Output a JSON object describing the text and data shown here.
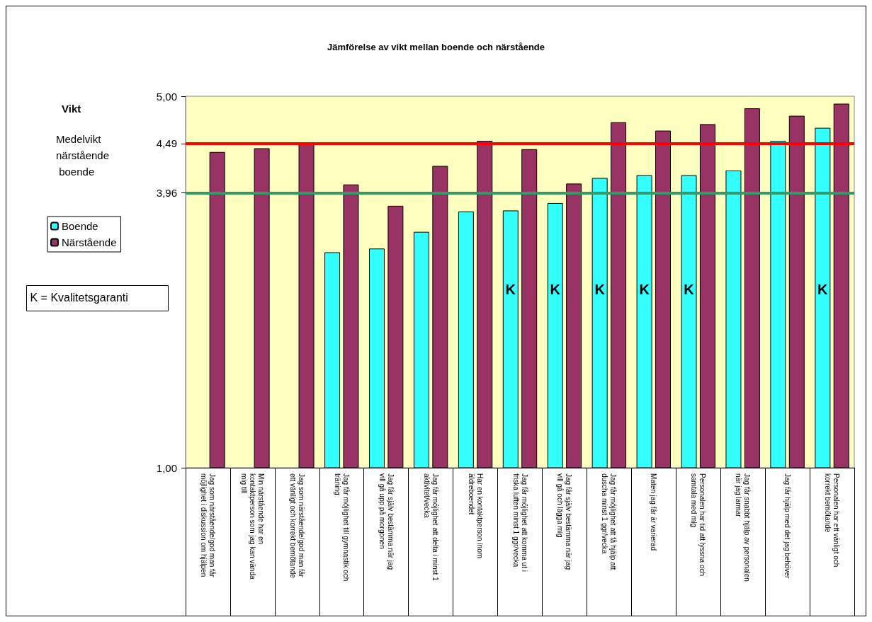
{
  "chart_data": {
    "type": "bar",
    "title": "Jämförelse av vikt mellan boende och närstående",
    "categories": [
      "Jag som närstående/god man får möjlighet i diskussion om hjälpen",
      "Min närstående har en kontaktperson som jag kan vända mig till",
      "Jag som närstående/god man får ett vänligt och korrekt bemötande",
      "Jag får möjlighet till gymnastik och träning",
      "Jag får själv bestämma när jag vill gå upp på morgonen",
      "Jag får möjlighet att delta i minst 1 aktivitet/vecka",
      "Har en kontaktperson inom äldreboendet",
      "Jag får möjlighet att komma ut i friska luften minst 1 ggr/vecka",
      "Jag får själv bestämma när jag vill gå och lägga mig",
      "Jag får möjlighet att få hjälp att duscha minst 1 ggr/vecka",
      "Maten jag får är varierad",
      "Personalen har tid att lyssna och samtala med mig",
      "Jag får snabbt hjälp av personalen när jag larmar",
      "Jag får hjälp med det jag behöver",
      "Personalen har ett vänligt och korrekt bemötande"
    ],
    "series": [
      {
        "name": "Boende",
        "color": "#33ffff",
        "values": [
          null,
          null,
          null,
          3.32,
          3.36,
          3.54,
          3.76,
          3.77,
          3.85,
          4.12,
          4.15,
          4.15,
          4.2,
          4.52,
          4.66
        ]
      },
      {
        "name": "Närstående",
        "color": "#993366",
        "values": [
          4.4,
          4.44,
          4.5,
          4.05,
          3.82,
          4.25,
          4.52,
          4.43,
          4.06,
          4.72,
          4.63,
          4.7,
          4.87,
          4.79,
          4.92
        ]
      }
    ],
    "ylim": [
      1,
      5
    ],
    "yticks": [
      {
        "value": 1,
        "label": "1,00"
      },
      {
        "value": 3.96,
        "label": "3,96"
      },
      {
        "value": 4.49,
        "label": "4,49"
      },
      {
        "value": 5,
        "label": "5,00"
      }
    ],
    "ref_lines": [
      {
        "axis": "y",
        "value": 4.49,
        "color": "#ff0000"
      },
      {
        "axis": "y",
        "value": 3.96,
        "color": "#339966"
      }
    ],
    "grid": false,
    "legend": "left",
    "annotations": [
      "Vikt",
      "Medelvikt närstående boende",
      "K = Kvalitetsgaranti",
      {
        "text": "K",
        "x": "Jag får möjlighet att komma ut i friska luften minst 1 ggr/vecka",
        "y": 2.92
      },
      {
        "text": "K",
        "x": "Jag får själv bestämma när jag vill gå och lägga mig",
        "y": 2.92
      },
      {
        "text": "K",
        "x": "Jag får möjlighet att få hjälp att duscha minst 1 ggr/vecka",
        "y": 2.92
      },
      {
        "text": "K",
        "x": "Maten jag får är varierad",
        "y": 2.92
      },
      {
        "text": "K",
        "x": "Personalen har tid att lyssna och samtala med mig",
        "y": 2.92
      },
      {
        "text": "K",
        "x": "Personalen har ett vänligt och korrekt bemötande",
        "y": 2.92
      }
    ]
  }
}
